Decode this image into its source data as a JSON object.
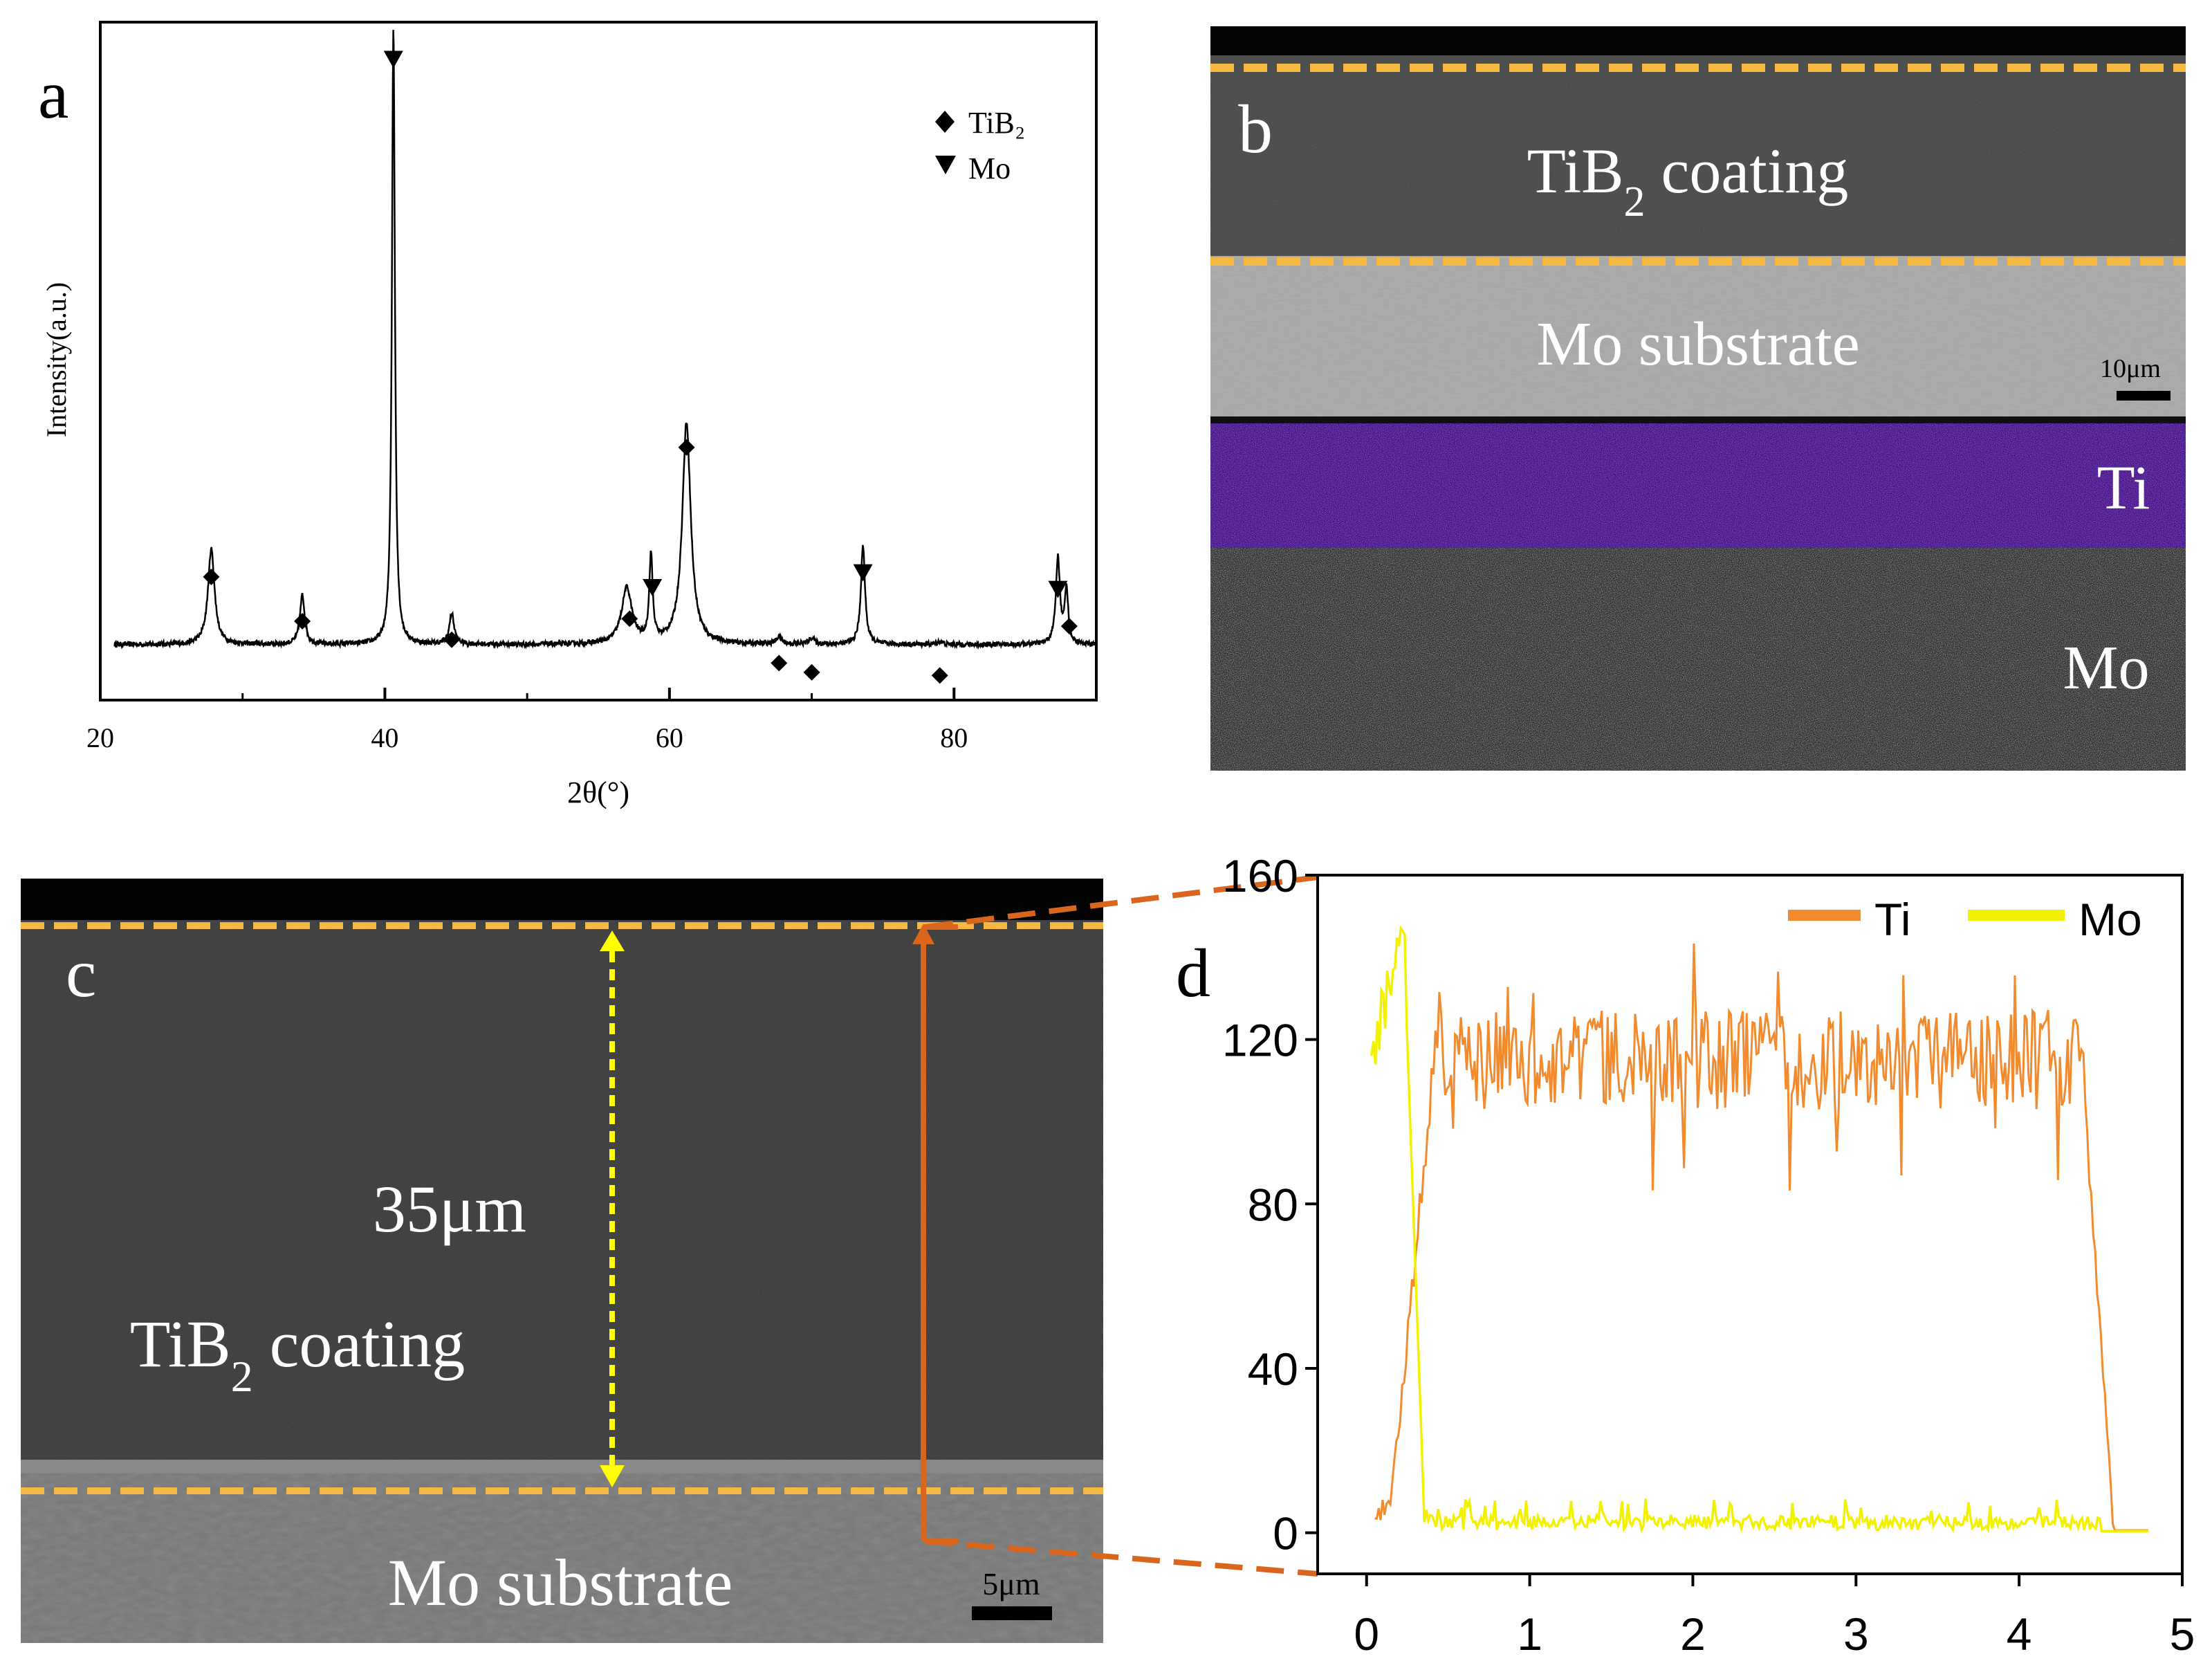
{
  "panels": {
    "a": {
      "letter": "a"
    },
    "b": {
      "letter": "b",
      "coating_label": "TiB",
      "coating_sub": "2",
      "coating_rest": " coating",
      "substrate_label": "Mo substrate",
      "scale_label": "10μm",
      "map_ti_label": "Ti",
      "map_mo_label": "Mo",
      "map_ti_color": "#5a1fd6"
    },
    "c": {
      "letter": "c",
      "thickness_label": "35μm",
      "coating_label": "TiB",
      "coating_sub": "2",
      "coating_rest": " coating",
      "substrate_label": "Mo substrate",
      "scale_label": "5μm",
      "line_color": "#d9661c",
      "arrow_color": "#ffff00",
      "boundary_color": "#f5b840"
    },
    "d": {
      "letter": "d"
    }
  },
  "chart_data": [
    {
      "id": "a",
      "type": "line",
      "title": "",
      "xlabel": "2θ(°)",
      "ylabel": "Intensity(a.u.)",
      "xlim": [
        20,
        90
      ],
      "ylim": [
        0,
        1.1
      ],
      "xticks": [
        20,
        40,
        60,
        80
      ],
      "legend": [
        {
          "label": "TiB₂",
          "marker": "diamond"
        },
        {
          "label": "Mo",
          "marker": "triangle-down"
        }
      ],
      "peaks": [
        {
          "x": 27.8,
          "h": 0.155,
          "w": 0.35,
          "phase": "TiB2"
        },
        {
          "x": 34.2,
          "h": 0.08,
          "w": 0.25,
          "phase": "TiB2"
        },
        {
          "x": 40.6,
          "h": 1.0,
          "w": 0.16,
          "phase": "Mo"
        },
        {
          "x": 44.7,
          "h": 0.05,
          "w": 0.25,
          "phase": "TiB2"
        },
        {
          "x": 57.0,
          "h": 0.09,
          "w": 0.55,
          "phase": "TiB2"
        },
        {
          "x": 58.7,
          "h": 0.14,
          "w": 0.18,
          "phase": "Mo"
        },
        {
          "x": 61.2,
          "h": 0.36,
          "w": 0.45,
          "phase": "TiB2"
        },
        {
          "x": 67.7,
          "h": 0.012,
          "w": 0.3,
          "phase": "TiB2"
        },
        {
          "x": 70.0,
          "h": 0.01,
          "w": 0.3,
          "phase": "TiB2"
        },
        {
          "x": 73.6,
          "h": 0.16,
          "w": 0.22,
          "phase": "Mo"
        },
        {
          "x": 79.0,
          "h": 0.005,
          "w": 0.3,
          "phase": "TiB2"
        },
        {
          "x": 87.3,
          "h": 0.14,
          "w": 0.22,
          "phase": "Mo"
        },
        {
          "x": 87.9,
          "h": 0.09,
          "w": 0.18,
          "phase": "TiB2"
        }
      ],
      "markers": [
        {
          "x": 27.8,
          "y": 0.2,
          "phase": "TiB2"
        },
        {
          "x": 34.2,
          "y": 0.128,
          "phase": "TiB2"
        },
        {
          "x": 40.6,
          "y": 1.04,
          "phase": "Mo"
        },
        {
          "x": 44.7,
          "y": 0.098,
          "phase": "TiB2"
        },
        {
          "x": 57.2,
          "y": 0.132,
          "phase": "TiB2"
        },
        {
          "x": 58.8,
          "y": 0.183,
          "phase": "Mo"
        },
        {
          "x": 61.2,
          "y": 0.41,
          "phase": "TiB2"
        },
        {
          "x": 67.7,
          "y": 0.06,
          "phase": "TiB2"
        },
        {
          "x": 70.0,
          "y": 0.045,
          "phase": "TiB2"
        },
        {
          "x": 73.6,
          "y": 0.207,
          "phase": "Mo"
        },
        {
          "x": 79.0,
          "y": 0.04,
          "phase": "TiB2"
        },
        {
          "x": 87.3,
          "y": 0.18,
          "phase": "Mo"
        },
        {
          "x": 88.1,
          "y": 0.12,
          "phase": "TiB2"
        }
      ]
    },
    {
      "id": "d",
      "type": "line",
      "title": "",
      "xlabel": "",
      "ylabel": "",
      "xlim": [
        -0.3,
        5.0
      ],
      "ylim": [
        -10,
        160
      ],
      "xticks": [
        0,
        1,
        2,
        3,
        4,
        5
      ],
      "yticks": [
        0,
        40,
        80,
        120,
        160
      ],
      "legend_position": "top-right",
      "series": [
        {
          "name": "Ti",
          "color": "#f28a2e",
          "shape": {
            "start": 0.05,
            "rise": [
              0.15,
              0.4
            ],
            "plateau": 115,
            "noise": 12,
            "fall": [
              4.4,
              4.58
            ],
            "end": 4.8,
            "low": 2
          }
        },
        {
          "name": "Mo",
          "color": "#f2f200",
          "shape": {
            "start": 0.03,
            "peak_x": 0.22,
            "peak_y": 148,
            "initial": 115,
            "drop": [
              0.24,
              0.35
            ],
            "baseline": 2.5,
            "noise": 1.8,
            "end": 4.8
          }
        }
      ]
    }
  ]
}
